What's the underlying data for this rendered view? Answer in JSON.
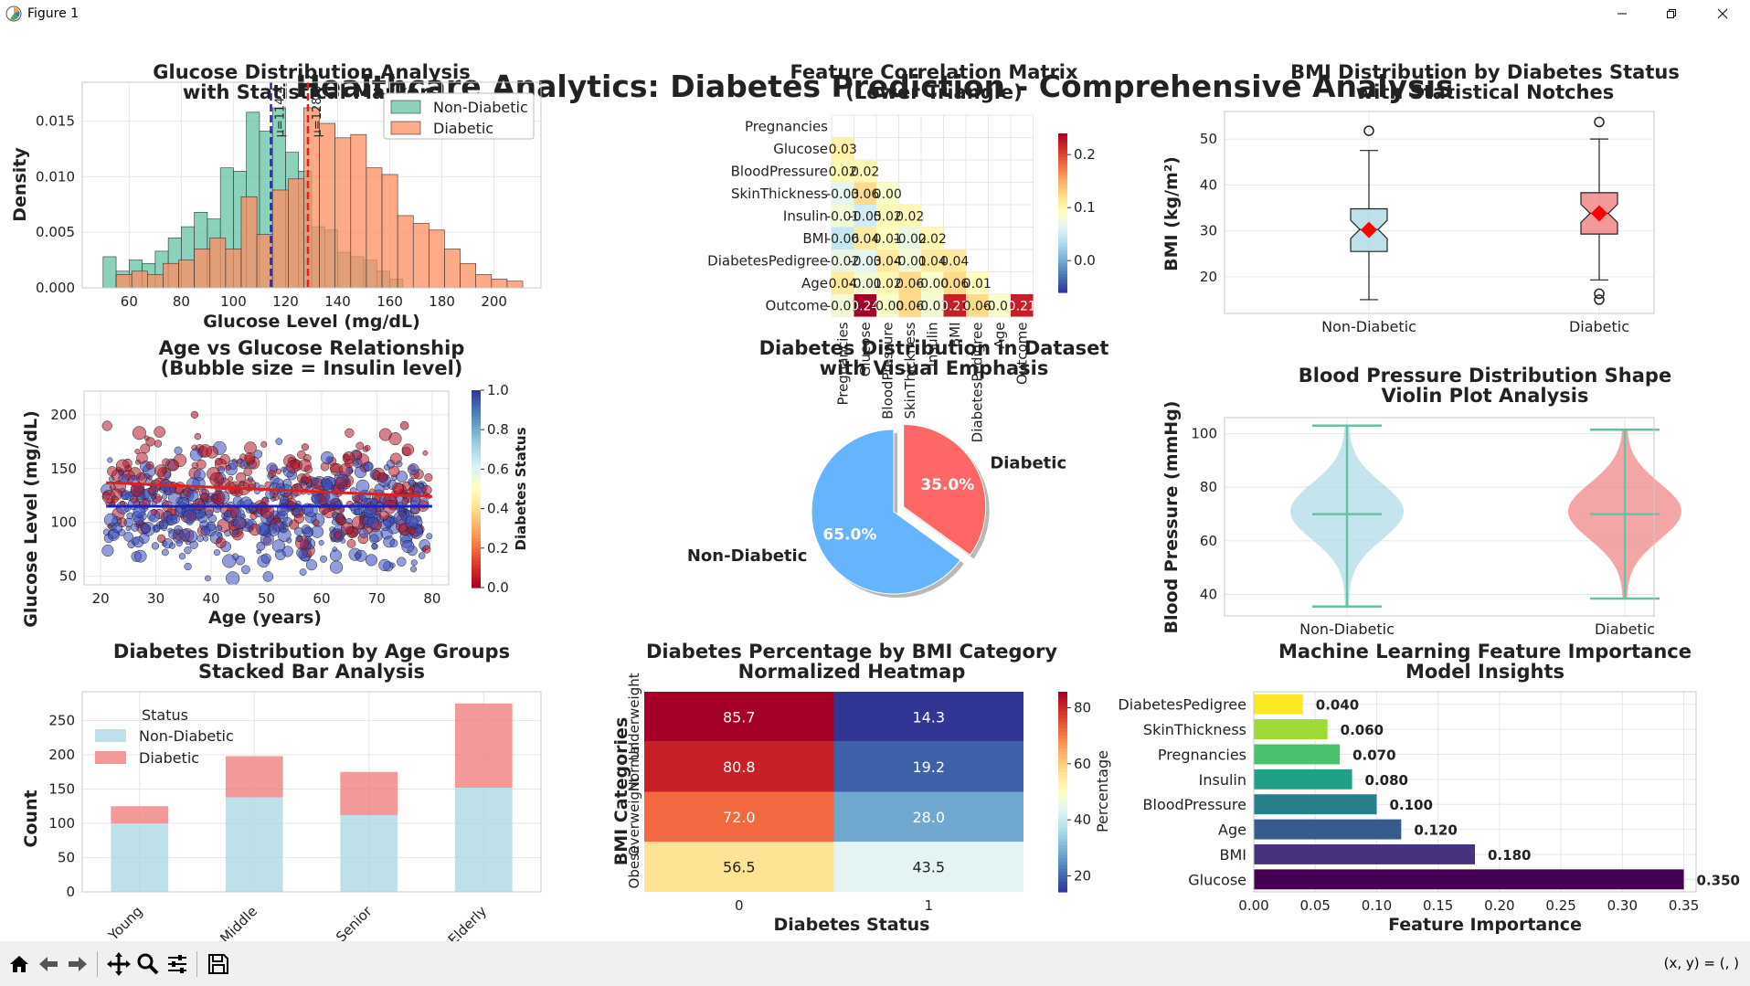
{
  "window": {
    "title": "Figure 1"
  },
  "suptitle": "Healthcare Analytics: Diabetes Prediction - Comprehensive Analysis",
  "status": {
    "coords": "(x, y) = (, )"
  },
  "toolbar": {
    "buttons": [
      "home-icon",
      "back-icon",
      "forward-icon",
      "pan-icon",
      "zoom-icon",
      "configure-icon",
      "save-icon"
    ]
  },
  "colors": {
    "nondiabetic": "#66c2a5",
    "diabetic": "#fc8d62",
    "light_blue": "#add8e6",
    "light_coral": "#f08080"
  },
  "chart_data": [
    {
      "id": "glucose_hist",
      "type": "histogram",
      "title": "Glucose Distribution Analysis\nwith Statistical Markers",
      "xlabel": "Glucose Level (mg/dL)",
      "ylabel": "Density",
      "xlim": [
        42,
        218
      ],
      "ylim": [
        0,
        0.0185
      ],
      "xticks": [
        60,
        80,
        100,
        120,
        140,
        160,
        180,
        200
      ],
      "yticks": [
        0.0,
        0.005,
        0.01,
        0.015
      ],
      "ytick_labels": [
        "0.000",
        "0.005",
        "0.010",
        "0.015"
      ],
      "legend": [
        "Non-Diabetic",
        "Diabetic"
      ],
      "legend_position": "top-right",
      "series": [
        {
          "name": "Non-Diabetic",
          "color": "#66c2a5",
          "bins": [
            [
              50,
              55,
              0.0028
            ],
            [
              55,
              60,
              0.0015
            ],
            [
              60,
              65,
              0.0025
            ],
            [
              65,
              70,
              0.0022
            ],
            [
              70,
              75,
              0.0033
            ],
            [
              75,
              80,
              0.0045
            ],
            [
              80,
              85,
              0.0055
            ],
            [
              85,
              90,
              0.0068
            ],
            [
              90,
              95,
              0.0062
            ],
            [
              95,
              100,
              0.0108
            ],
            [
              100,
              105,
              0.0105
            ],
            [
              105,
              110,
              0.0158
            ],
            [
              110,
              115,
              0.0141
            ],
            [
              115,
              120,
              0.0162
            ],
            [
              120,
              125,
              0.0122
            ],
            [
              125,
              130,
              0.0105
            ],
            [
              130,
              135,
              0.0055
            ],
            [
              135,
              140,
              0.0052
            ],
            [
              140,
              145,
              0.0032
            ],
            [
              145,
              150,
              0.0028
            ],
            [
              150,
              155,
              0.0025
            ],
            [
              155,
              160,
              0.0015
            ],
            [
              160,
              165,
              0.0008
            ]
          ]
        },
        {
          "name": "Diabetic",
          "color": "#fc8d62",
          "bins": [
            [
              55,
              61,
              0.0012
            ],
            [
              61,
              67,
              0.0015
            ],
            [
              67,
              73,
              0.0012
            ],
            [
              73,
              79,
              0.0022
            ],
            [
              79,
              85,
              0.0025
            ],
            [
              85,
              91,
              0.0035
            ],
            [
              91,
              97,
              0.0045
            ],
            [
              97,
              103,
              0.0035
            ],
            [
              103,
              109,
              0.0082
            ],
            [
              109,
              115,
              0.0048
            ],
            [
              115,
              121,
              0.0088
            ],
            [
              121,
              127,
              0.0098
            ],
            [
              127,
              133,
              0.0162
            ],
            [
              133,
              139,
              0.0148
            ],
            [
              139,
              145,
              0.0135
            ],
            [
              145,
              151,
              0.0138
            ],
            [
              151,
              157,
              0.0108
            ],
            [
              157,
              163,
              0.0102
            ],
            [
              163,
              169,
              0.0065
            ],
            [
              169,
              175,
              0.0058
            ],
            [
              175,
              181,
              0.0052
            ],
            [
              181,
              187,
              0.0035
            ],
            [
              187,
              193,
              0.0022
            ],
            [
              193,
              199,
              0.0012
            ],
            [
              199,
              205,
              0.0008
            ],
            [
              205,
              211,
              0.0006
            ]
          ]
        }
      ],
      "mean_lines": [
        {
          "value": 114.4,
          "label": "μ=114.4",
          "color": "#1f1fd6"
        },
        {
          "value": 128.6,
          "label": "μ=128.6",
          "color": "#e02020"
        }
      ]
    },
    {
      "id": "corr_matrix",
      "type": "heatmap",
      "title": "Feature Correlation Matrix\n(Lower Triangle)",
      "labels": [
        "Pregnancies",
        "Glucose",
        "BloodPressure",
        "SkinThickness",
        "Insulin",
        "BMI",
        "DiabetesPedigree",
        "Age",
        "Outcome"
      ],
      "lower_triangle": [
        [],
        [
          "0.03"
        ],
        [
          "0.02",
          "0.02"
        ],
        [
          "-0.03",
          "0.06",
          "0.00"
        ],
        [
          "-0.01",
          "-0.05",
          "0.02",
          "0.02"
        ],
        [
          "-0.06",
          "0.04",
          "0.01",
          "-0.02",
          "0.02"
        ],
        [
          "-0.02",
          "-0.03",
          "0.04",
          "-0.01",
          "0.04",
          "0.04"
        ],
        [
          "0.04",
          "-0.01",
          "0.02",
          "0.06",
          "-0.00",
          "0.06",
          "0.01"
        ],
        [
          "-0.01",
          "0.24",
          "-0.00",
          "0.06",
          "-0.01",
          "0.21",
          "0.06",
          "-0.00",
          "0.21"
        ]
      ],
      "lower_triangle_values": [
        [],
        [
          0.03
        ],
        [
          0.02,
          0.02
        ],
        [
          -0.03,
          0.06,
          0.0
        ],
        [
          -0.01,
          -0.05,
          0.02,
          0.02
        ],
        [
          -0.06,
          0.04,
          0.01,
          -0.02,
          0.02
        ],
        [
          -0.02,
          -0.03,
          0.04,
          -0.01,
          0.04,
          0.04
        ],
        [
          0.04,
          -0.01,
          0.02,
          0.06,
          -0.0,
          0.06,
          0.01
        ],
        [
          -0.01,
          0.24,
          -0.0,
          0.06,
          -0.01,
          0.21,
          0.06,
          -0.0,
          0.21
        ]
      ],
      "colorbar": {
        "ticks": [
          0.0,
          0.1,
          0.2
        ],
        "tick_labels": [
          "0.0",
          "0.1",
          "0.2"
        ],
        "range": [
          -0.06,
          0.24
        ],
        "colormap": "RdYlBu_r"
      }
    },
    {
      "id": "bmi_box",
      "type": "boxplot",
      "title": "BMI Distribution by Diabetes Status\nwith Statistical Notches",
      "ylabel": "BMI (kg/m²)",
      "ylim": [
        12,
        56
      ],
      "yticks": [
        20,
        30,
        40,
        50
      ],
      "categories": [
        "Non-Diabetic",
        "Diabetic"
      ],
      "boxes": [
        {
          "name": "Non-Diabetic",
          "color": "#add8e6",
          "whisker_low": 15.0,
          "q1": 25.5,
          "median": 30.3,
          "q3": 34.8,
          "whisker_high": 47.5,
          "mean": 30.2,
          "outliers": [
            51.8
          ]
        },
        {
          "name": "Diabetic",
          "color": "#f08080",
          "whisker_low": 19.3,
          "q1": 29.3,
          "median": 33.8,
          "q3": 38.3,
          "whisker_high": 50.0,
          "mean": 33.8,
          "outliers": [
            53.7,
            16.3,
            15.0
          ]
        }
      ]
    },
    {
      "id": "age_glucose_scatter",
      "type": "scatter",
      "title": "Age vs Glucose Relationship\n(Bubble size = Insulin level)",
      "xlabel": "Age (years)",
      "ylabel": "Glucose Level (mg/dL)",
      "xlim": [
        17,
        83
      ],
      "ylim": [
        42,
        222
      ],
      "xticks": [
        20,
        30,
        40,
        50,
        60,
        70,
        80
      ],
      "yticks": [
        50,
        100,
        150,
        200
      ],
      "colorbar": {
        "label": "Diabetes Status",
        "ticks": [
          0.0,
          0.2,
          0.4,
          0.6,
          0.8,
          1.0
        ],
        "tick_labels": [
          "0.0",
          "0.2",
          "0.4",
          "0.6",
          "0.8",
          "1.0"
        ],
        "colormap": "RdYlBu"
      },
      "point_count_estimate": 700,
      "trend_lines": [
        {
          "name": "Non-Diabetic trend",
          "color": "#2020c0",
          "x": [
            21,
            80
          ],
          "y": [
            115,
            115
          ]
        },
        {
          "name": "Diabetic trend",
          "color": "#e02020",
          "x": [
            21,
            80
          ],
          "y": [
            137,
            124
          ]
        }
      ],
      "sample_points": {
        "x": [
          21,
          23,
          25,
          27,
          29,
          31,
          33,
          35,
          37,
          39,
          41,
          43,
          45,
          47,
          49,
          51,
          53,
          55,
          57,
          59,
          61,
          63,
          65,
          67,
          69,
          71,
          73,
          75,
          77,
          79
        ],
        "y": [
          125,
          95,
          150,
          110,
          175,
          85,
          132,
          118,
          200,
          92,
          140,
          108,
          128,
          160,
          78,
          145,
          112,
          98,
          170,
          122,
          135,
          88,
          155,
          115,
          65,
          142,
          102,
          190,
          120,
          75
        ],
        "status": [
          0,
          1,
          0,
          1,
          0,
          0,
          1,
          1,
          0,
          1,
          0,
          1,
          0,
          0,
          1,
          0,
          1,
          0,
          0,
          1,
          1,
          0,
          0,
          1,
          1,
          0,
          1,
          0,
          1,
          0
        ],
        "insulin": [
          80,
          150,
          60,
          210,
          120,
          95,
          40,
          180,
          70,
          130,
          250,
          55,
          90,
          160,
          110,
          75,
          200,
          140,
          65,
          100,
          170,
          85,
          120,
          45,
          190,
          135,
          60,
          105,
          155,
          90
        ]
      }
    },
    {
      "id": "diabetes_pie",
      "type": "pie",
      "title": "Diabetes Distribution in Dataset\nwith Visual Emphasis",
      "slices": [
        {
          "label": "Non-Diabetic",
          "value": 65.0,
          "text": "65.0%",
          "color": "#66b3ff"
        },
        {
          "label": "Diabetic",
          "value": 35.0,
          "text": "35.0%",
          "color": "#ff6666",
          "explode": true
        }
      ]
    },
    {
      "id": "bp_violin",
      "type": "violin",
      "title": "Blood Pressure Distribution Shape\nViolin Plot Analysis",
      "ylabel": "Blood Pressure (mmHg)",
      "ylim": [
        32,
        106
      ],
      "yticks": [
        40,
        60,
        80,
        100
      ],
      "categories": [
        "Non-Diabetic",
        "Diabetic"
      ],
      "violins": [
        {
          "name": "Non-Diabetic",
          "color": "#add8e6",
          "min": 35.5,
          "median": 70.0,
          "max": 103.0
        },
        {
          "name": "Diabetic",
          "color": "#f08080",
          "min": 38.5,
          "median": 70.0,
          "max": 101.5
        }
      ]
    },
    {
      "id": "age_groups",
      "type": "stacked_bar",
      "title": "Diabetes Distribution by Age Groups\nStacked Bar Analysis",
      "ylabel": "Count",
      "ylim": [
        0,
        292
      ],
      "yticks": [
        0,
        50,
        100,
        150,
        200,
        250
      ],
      "categories": [
        "Young",
        "Middle",
        "Senior",
        "Elderly"
      ],
      "legend_title": "Status",
      "legend_position": "top-left",
      "series": [
        {
          "name": "Non-Diabetic",
          "color": "#add8e6",
          "values": [
            100,
            138,
            112,
            152
          ]
        },
        {
          "name": "Diabetic",
          "color": "#f08080",
          "values": [
            25,
            60,
            63,
            123
          ]
        }
      ]
    },
    {
      "id": "bmi_category_heatmap",
      "type": "heatmap",
      "title": "Diabetes Percentage by BMI Category\nNormalized Heatmap",
      "xlabel": "Diabetes Status",
      "ylabel": "BMI Categories",
      "columns": [
        "0",
        "1"
      ],
      "rows": [
        "Underweight",
        "Normal",
        "Overweight",
        "Obese"
      ],
      "values": [
        [
          85.7,
          14.3
        ],
        [
          80.8,
          19.2
        ],
        [
          72.0,
          28.0
        ],
        [
          56.5,
          43.5
        ]
      ],
      "value_labels": [
        [
          "85.7",
          "14.3"
        ],
        [
          "80.8",
          "19.2"
        ],
        [
          "72.0",
          "28.0"
        ],
        [
          "56.5",
          "43.5"
        ]
      ],
      "colorbar": {
        "label": "Percentage",
        "ticks": [
          20,
          40,
          60,
          80
        ],
        "tick_labels": [
          "20",
          "40",
          "60",
          "80"
        ],
        "range": [
          14.3,
          85.7
        ],
        "colormap": "RdYlBu_r"
      }
    },
    {
      "id": "feature_importance",
      "type": "barh",
      "title": "Machine Learning Feature Importance\nModel Insights",
      "xlabel": "Feature Importance",
      "xlim": [
        0,
        0.36
      ],
      "xticks": [
        0.0,
        0.05,
        0.1,
        0.15,
        0.2,
        0.25,
        0.3,
        0.35
      ],
      "xtick_labels": [
        "0.00",
        "0.05",
        "0.10",
        "0.15",
        "0.20",
        "0.25",
        "0.30",
        "0.35"
      ],
      "categories": [
        "Glucose",
        "BMI",
        "Age",
        "BloodPressure",
        "Insulin",
        "Pregnancies",
        "SkinThickness",
        "DiabetesPedigree"
      ],
      "values": [
        0.35,
        0.18,
        0.12,
        0.1,
        0.08,
        0.07,
        0.06,
        0.04
      ],
      "value_labels": [
        "0.350",
        "0.180",
        "0.120",
        "0.100",
        "0.080",
        "0.070",
        "0.060",
        "0.040"
      ],
      "colors": [
        "#440154",
        "#46327e",
        "#365c8d",
        "#277f8e",
        "#1fa187",
        "#4ac16d",
        "#a0da39",
        "#fde725"
      ]
    }
  ]
}
